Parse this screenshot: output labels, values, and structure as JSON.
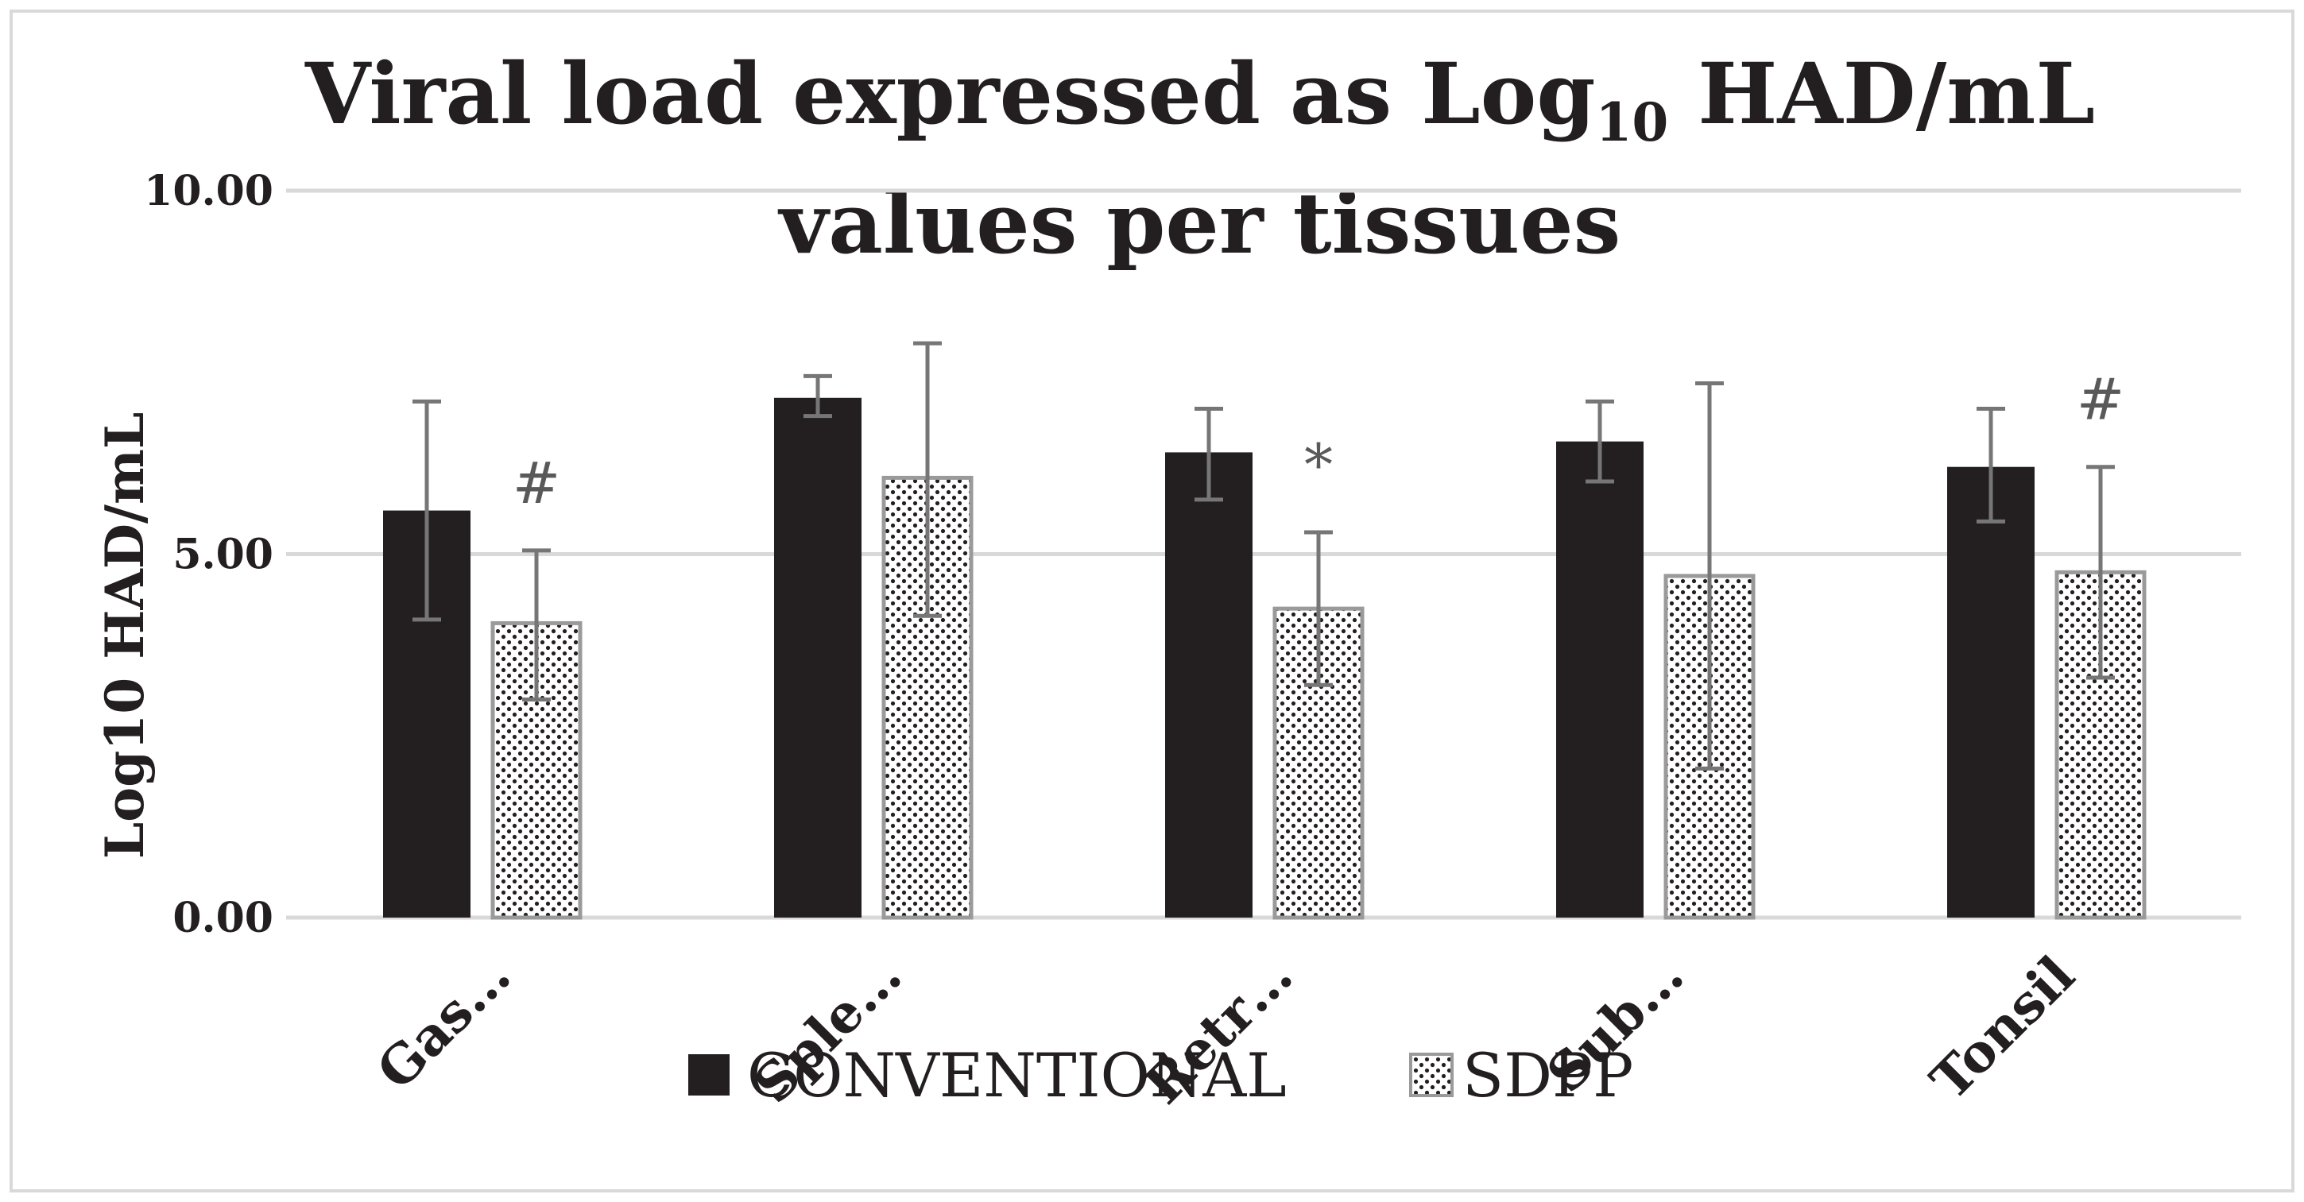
{
  "chart_data": {
    "type": "bar",
    "title_main": "Viral load expressed as Log",
    "title_sub": "10",
    "title_rest": " HAD/mL",
    "title_line2": "values per tissues",
    "xlabel": "",
    "ylabel": "Log10 HAD/mL",
    "ylim": [
      0,
      10
    ],
    "yticks": [
      "0.00",
      "5.00",
      "10.00"
    ],
    "ytick_values": [
      0,
      5,
      10
    ],
    "grid": true,
    "categories": [
      "Gas…",
      "Sple…",
      "Retr…",
      "Sub…",
      "Tonsil"
    ],
    "series": [
      {
        "name": "CONVENTIONAL",
        "color": "#231f20",
        "pattern": "solid",
        "values": [
          5.6,
          7.15,
          6.4,
          6.55,
          6.2
        ],
        "err_low": [
          4.1,
          6.9,
          5.75,
          6.0,
          5.45
        ],
        "err_high": [
          7.1,
          7.45,
          7.0,
          7.1,
          7.0
        ]
      },
      {
        "name": "SDPP",
        "color": "#ffffff",
        "edge": "#9a9a9a",
        "pattern": "dots",
        "values": [
          4.05,
          6.05,
          4.25,
          4.7,
          4.75
        ],
        "err_low": [
          3.0,
          4.15,
          3.2,
          2.05,
          3.3
        ],
        "err_high": [
          5.05,
          7.9,
          5.3,
          7.35,
          6.2
        ]
      }
    ],
    "annotations": [
      {
        "category": 0,
        "series": 1,
        "text": "#"
      },
      {
        "category": 2,
        "series": 1,
        "text": "*"
      },
      {
        "category": 4,
        "series": 1,
        "text": "#"
      }
    ],
    "legend_position": "bottom-center"
  }
}
